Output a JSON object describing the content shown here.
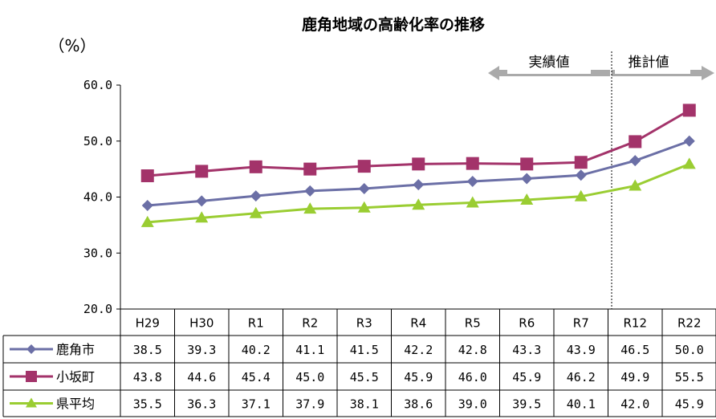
{
  "chart_data": {
    "type": "line",
    "title": "鹿角地域の高齢化率の推移",
    "ylabel": "（%）",
    "ylim": [
      20,
      60
    ],
    "yticks": [
      "60.0",
      "50.0",
      "40.0",
      "30.0",
      "20.0"
    ],
    "categories": [
      "H29",
      "H30",
      "R1",
      "R2",
      "R3",
      "R4",
      "R5",
      "R6",
      "R7",
      "R12",
      "R22"
    ],
    "series": [
      {
        "name": "鹿角市",
        "color": "#6B6FA6",
        "marker": "diamond",
        "values": [
          38.5,
          39.3,
          40.2,
          41.1,
          41.5,
          42.2,
          42.8,
          43.3,
          43.9,
          46.5,
          50.0
        ],
        "labels": [
          "38.5",
          "39.3",
          "40.2",
          "41.1",
          "41.5",
          "42.2",
          "42.8",
          "43.3",
          "43.9",
          "46.5",
          "50.0"
        ]
      },
      {
        "name": "小坂町",
        "color": "#A3336A",
        "marker": "square",
        "values": [
          43.8,
          44.6,
          45.4,
          45.0,
          45.5,
          45.9,
          46.0,
          45.9,
          46.2,
          49.9,
          55.5
        ],
        "labels": [
          "43.8",
          "44.6",
          "45.4",
          "45.0",
          "45.5",
          "45.9",
          "46.0",
          "45.9",
          "46.2",
          "49.9",
          "55.5"
        ]
      },
      {
        "name": "県平均",
        "color": "#9ACD32",
        "marker": "triangle",
        "values": [
          35.5,
          36.3,
          37.1,
          37.9,
          38.1,
          38.6,
          39.0,
          39.5,
          40.1,
          42.0,
          45.9
        ],
        "labels": [
          "35.5",
          "36.3",
          "37.1",
          "37.9",
          "38.1",
          "38.6",
          "39.0",
          "39.5",
          "40.1",
          "42.0",
          "45.9"
        ]
      }
    ],
    "annotations": {
      "actual": "実績値",
      "projected": "推計値"
    },
    "grid": false,
    "legend": "data-table"
  }
}
